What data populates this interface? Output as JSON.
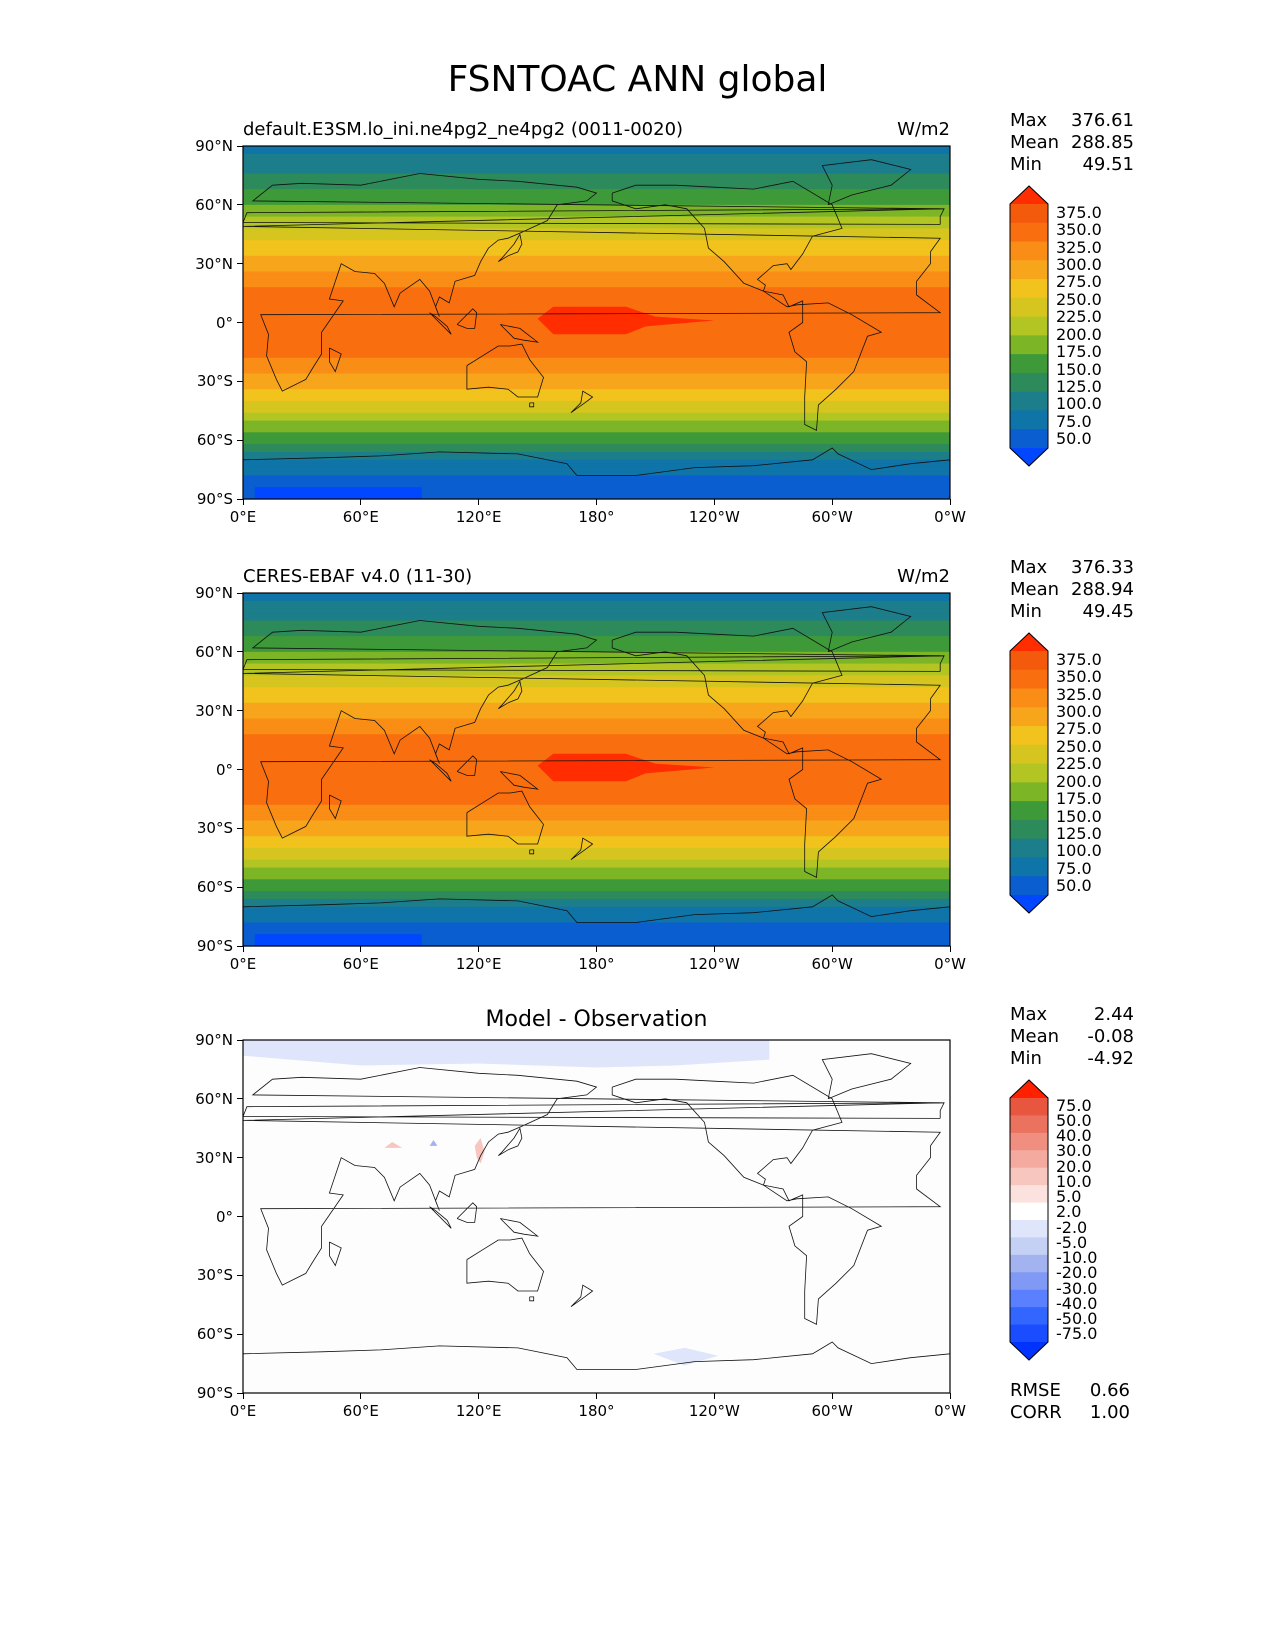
{
  "figure": {
    "title": "FSNTOAC ANN global"
  },
  "axes_ticks": {
    "x": [
      "0°E",
      "60°E",
      "120°E",
      "180°",
      "120°W",
      "60°W",
      "0°W"
    ],
    "y": [
      "90°N",
      "60°N",
      "30°N",
      "0°",
      "30°S",
      "60°S",
      "90°S"
    ]
  },
  "panels": [
    {
      "left_title": "default.E3SM.lo_ini.ne4pg2_ne4pg2 (0011-0020)",
      "center_title": "",
      "units": "W/m2",
      "stats": {
        "Max": "376.61",
        "Mean": "288.85",
        "Min": "49.51"
      },
      "colorbar_ticks": [
        "375.0",
        "350.0",
        "325.0",
        "300.0",
        "275.0",
        "250.0",
        "225.0",
        "200.0",
        "175.0",
        "150.0",
        "125.0",
        "100.0",
        "75.0",
        "50.0"
      ]
    },
    {
      "left_title": "CERES-EBAF v4.0 (11-30)",
      "center_title": "",
      "units": "W/m2",
      "stats": {
        "Max": "376.33",
        "Mean": "288.94",
        "Min": "49.45"
      },
      "colorbar_ticks": [
        "375.0",
        "350.0",
        "325.0",
        "300.0",
        "275.0",
        "250.0",
        "225.0",
        "200.0",
        "175.0",
        "150.0",
        "125.0",
        "100.0",
        "75.0",
        "50.0"
      ]
    },
    {
      "left_title": "",
      "center_title": "Model - Observation",
      "units": "",
      "stats": {
        "Max": "2.44",
        "Mean": "-0.08",
        "Min": "-4.92"
      },
      "colorbar_ticks": [
        "75.0",
        "50.0",
        "40.0",
        "30.0",
        "20.0",
        "10.0",
        "5.0",
        "2.0",
        "-2.0",
        "-5.0",
        "-10.0",
        "-20.0",
        "-30.0",
        "-40.0",
        "-50.0",
        "-75.0"
      ],
      "metrics": {
        "RMSE": "0.66",
        "CORR": "1.00"
      }
    }
  ],
  "colors": {
    "field_scale": [
      "#0047ff",
      "#0a5ecf",
      "#0f74a8",
      "#1c7d8b",
      "#2d8a5a",
      "#3e9a39",
      "#7cb526",
      "#b3c522",
      "#d6c51f",
      "#f2c21d",
      "#f7a51a",
      "#f98d15",
      "#f96f0f",
      "#f45a0c",
      "#ff2d00"
    ],
    "diff_scale": [
      "#0033ff",
      "#1a4dff",
      "#3366ff",
      "#5a80ff",
      "#7f99f5",
      "#a3b3f0",
      "#c5d0f5",
      "#dfe5fb",
      "#ffffff",
      "#fbe2de",
      "#f7c6bf",
      "#f4aa9f",
      "#f08e80",
      "#ec7260",
      "#e85640",
      "#ff2000"
    ]
  },
  "chart_data": [
    {
      "type": "heatmap",
      "title": "default.E3SM.lo_ini.ne4pg2_ne4pg2 (0011-0020)",
      "variable": "FSNTOAC",
      "units": "W/m2",
      "x": [
        0,
        60,
        120,
        180,
        240,
        300,
        360
      ],
      "xlabel": "",
      "xlim": [
        0,
        360
      ],
      "y": [
        90,
        60,
        30,
        0,
        -30,
        -60,
        -90
      ],
      "ylabel": "",
      "ylim": [
        -90,
        90
      ],
      "levels": [
        50,
        75,
        100,
        125,
        150,
        175,
        200,
        225,
        250,
        275,
        300,
        325,
        350,
        375
      ],
      "zonal_mean_profile": {
        "lat": [
          90,
          80,
          70,
          60,
          50,
          40,
          30,
          20,
          10,
          0,
          -10,
          -20,
          -30,
          -40,
          -50,
          -60,
          -70,
          -80,
          -90
        ],
        "value": [
          95,
          110,
          140,
          175,
          215,
          255,
          290,
          320,
          340,
          345,
          340,
          320,
          290,
          250,
          200,
          160,
          95,
          70,
          60
        ]
      },
      "max": 376.61,
      "mean": 288.85,
      "min": 49.51
    },
    {
      "type": "heatmap",
      "title": "CERES-EBAF v4.0 (11-30)",
      "variable": "FSNTOAC",
      "units": "W/m2",
      "x": [
        0,
        60,
        120,
        180,
        240,
        300,
        360
      ],
      "xlabel": "",
      "xlim": [
        0,
        360
      ],
      "y": [
        90,
        60,
        30,
        0,
        -30,
        -60,
        -90
      ],
      "ylabel": "",
      "ylim": [
        -90,
        90
      ],
      "levels": [
        50,
        75,
        100,
        125,
        150,
        175,
        200,
        225,
        250,
        275,
        300,
        325,
        350,
        375
      ],
      "zonal_mean_profile": {
        "lat": [
          90,
          80,
          70,
          60,
          50,
          40,
          30,
          20,
          10,
          0,
          -10,
          -20,
          -30,
          -40,
          -50,
          -60,
          -70,
          -80,
          -90
        ],
        "value": [
          95,
          110,
          140,
          175,
          215,
          255,
          290,
          320,
          340,
          345,
          340,
          320,
          290,
          250,
          200,
          160,
          95,
          70,
          60
        ]
      },
      "max": 376.33,
      "mean": 288.94,
      "min": 49.45
    },
    {
      "type": "heatmap",
      "title": "Model - Observation",
      "x": [
        0,
        60,
        120,
        180,
        240,
        300,
        360
      ],
      "xlabel": "",
      "xlim": [
        0,
        360
      ],
      "y": [
        90,
        60,
        30,
        0,
        -30,
        -60,
        -90
      ],
      "ylabel": "",
      "ylim": [
        -90,
        90
      ],
      "levels": [
        -75,
        -50,
        -40,
        -30,
        -20,
        -10,
        -5,
        -2,
        2,
        5,
        10,
        20,
        30,
        40,
        50,
        75
      ],
      "max": 2.44,
      "mean": -0.08,
      "min": -4.92,
      "rmse": 0.66,
      "corr": 1.0
    }
  ]
}
